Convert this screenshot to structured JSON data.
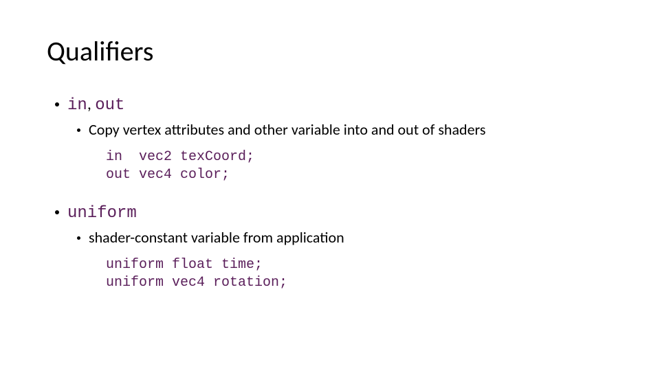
{
  "title": "Qualifiers",
  "colors": {
    "background": "#ffffff",
    "text": "#000000",
    "mono": "#5a1e5a",
    "bullet": "#000000"
  },
  "typography": {
    "title_fontsize": 40,
    "bullet_l1_fontsize": 24,
    "bullet_l2_fontsize": 22,
    "code_fontsize": 20,
    "font_family_sans": "Calibri",
    "font_family_mono": "Consolas"
  },
  "sections": [
    {
      "heading_mono_1": "in",
      "heading_sans_sep": ", ",
      "heading_mono_2": "out",
      "sub": "Copy vertex attributes and other variable into and out of shaders",
      "code": "in  vec2 texCoord;\nout vec4 color;"
    },
    {
      "heading_mono_1": "uniform",
      "heading_sans_sep": "",
      "heading_mono_2": "",
      "sub": "shader-constant variable from application",
      "code": "uniform float time;\nuniform vec4 rotation;"
    }
  ]
}
